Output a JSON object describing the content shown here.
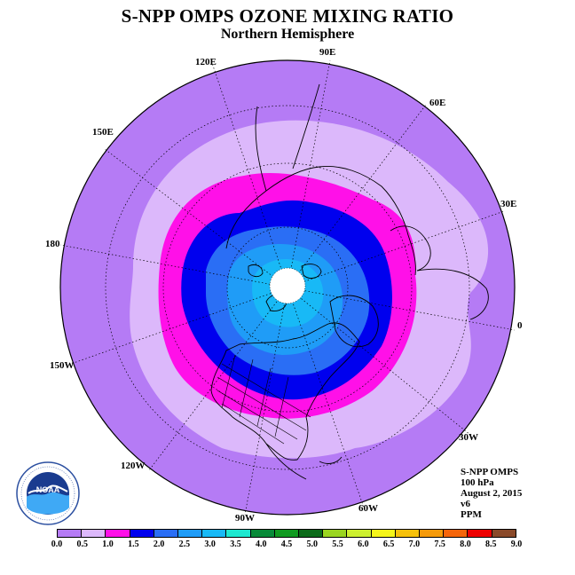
{
  "title": "S-NPP OMPS OZONE MIXING RATIO",
  "subtitle": "Northern Hemisphere",
  "longitude_labels": [
    {
      "text": "90E"
    },
    {
      "text": "60E"
    },
    {
      "text": "30E"
    },
    {
      "text": "0"
    },
    {
      "text": "30W"
    },
    {
      "text": "60W"
    },
    {
      "text": "90W"
    },
    {
      "text": "120W"
    },
    {
      "text": "150W"
    },
    {
      "text": "180"
    },
    {
      "text": "150E"
    },
    {
      "text": "120E"
    }
  ],
  "info": {
    "instrument": "S-NPP OMPS",
    "level": "100 hPa",
    "date": "August 2, 2015",
    "version": "v6",
    "units": "PPM"
  },
  "logo": {
    "text": "NOAA",
    "icon": "noaa-logo-icon"
  },
  "colorbar": {
    "colors": [
      "#b57bf5",
      "#dcb8fb",
      "#ff10e8",
      "#0000ee",
      "#2a6ef5",
      "#1f9cf7",
      "#18b9f6",
      "#1ee8d0",
      "#088a38",
      "#109a20",
      "#0c6b1a",
      "#9ad520",
      "#cdf030",
      "#f5f51a",
      "#f6c10b",
      "#f59a0a",
      "#f5650a",
      "#ee0000",
      "#8a4a2a"
    ],
    "labels": [
      "0.0",
      "0.5",
      "1.0",
      "1.5",
      "2.0",
      "2.5",
      "3.0",
      "3.5",
      "4.0",
      "4.5",
      "5.0",
      "5.5",
      "6.0",
      "6.5",
      "7.0",
      "7.5",
      "8.0",
      "8.5",
      "9.0"
    ]
  },
  "map": {
    "projection": "north polar stereographic",
    "field": "ozone mixing ratio",
    "bands": [
      {
        "range": "0.0-0.5",
        "color": "#b57bf5"
      },
      {
        "range": "0.5-1.0",
        "color": "#dcb8fb"
      },
      {
        "range": "1.0-1.5",
        "color": "#ff10e8"
      },
      {
        "range": "1.5-2.0",
        "color": "#0000ee"
      },
      {
        "range": "2.0-2.5",
        "color": "#2a6ef5"
      },
      {
        "range": "2.5-3.0",
        "color": "#1f9cf7"
      },
      {
        "range": "3.0-3.5",
        "color": "#18b9f6"
      }
    ]
  }
}
